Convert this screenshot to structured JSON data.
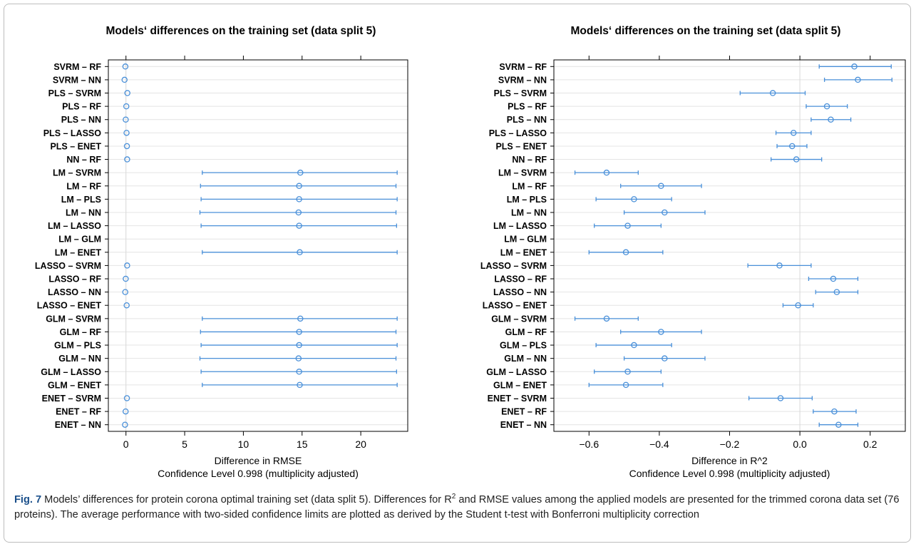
{
  "chart_data": [
    {
      "type": "scatter",
      "title": "Models‘ differences on the training set (data split 5)",
      "xlabel": "Difference in RMSE",
      "xlabel2": "Confidence Level 0.998  (multiplicity adjusted)",
      "xlim": [
        -1.5,
        24
      ],
      "xticks": [
        "0",
        "5",
        "10",
        "15",
        "20"
      ],
      "xtick_values": [
        0,
        5,
        10,
        15,
        20
      ],
      "reference_line": 0,
      "grid": true,
      "rows": [
        {
          "label": "SVRM – RF",
          "estimate": -0.05,
          "lower": -0.1,
          "upper": 0.02
        },
        {
          "label": "SVRM – NN",
          "estimate": -0.12,
          "lower": -0.17,
          "upper": -0.07
        },
        {
          "label": "PLS – SVRM",
          "estimate": 0.12,
          "lower": 0.07,
          "upper": 0.17
        },
        {
          "label": "PLS – RF",
          "estimate": 0.03,
          "lower": -0.02,
          "upper": 0.08
        },
        {
          "label": "PLS – NN",
          "estimate": -0.02,
          "lower": -0.07,
          "upper": 0.03
        },
        {
          "label": "PLS – LASSO",
          "estimate": 0.05,
          "lower": 0.0,
          "upper": 0.1
        },
        {
          "label": "PLS – ENET",
          "estimate": 0.08,
          "lower": 0.03,
          "upper": 0.13
        },
        {
          "label": "NN – RF",
          "estimate": 0.1,
          "lower": 0.05,
          "upper": 0.15
        },
        {
          "label": "LM – SVRM",
          "estimate": 14.85,
          "lower": 6.5,
          "upper": 23.1
        },
        {
          "label": "LM – RF",
          "estimate": 14.75,
          "lower": 6.35,
          "upper": 23.0
        },
        {
          "label": "LM – PLS",
          "estimate": 14.75,
          "lower": 6.4,
          "upper": 23.1
        },
        {
          "label": "LM – NN",
          "estimate": 14.7,
          "lower": 6.3,
          "upper": 23.0
        },
        {
          "label": "LM – LASSO",
          "estimate": 14.75,
          "lower": 6.4,
          "upper": 23.05
        },
        {
          "label": "LM – GLM",
          "estimate": null,
          "lower": null,
          "upper": null
        },
        {
          "label": "LM – ENET",
          "estimate": 14.8,
          "lower": 6.5,
          "upper": 23.1
        },
        {
          "label": "LASSO – SVRM",
          "estimate": 0.1,
          "lower": 0.05,
          "upper": 0.15
        },
        {
          "label": "LASSO – RF",
          "estimate": -0.02,
          "lower": -0.07,
          "upper": 0.03
        },
        {
          "label": "LASSO – NN",
          "estimate": -0.06,
          "lower": -0.11,
          "upper": -0.01
        },
        {
          "label": "LASSO – ENET",
          "estimate": 0.06,
          "lower": 0.01,
          "upper": 0.11
        },
        {
          "label": "GLM – SVRM",
          "estimate": 14.85,
          "lower": 6.5,
          "upper": 23.1
        },
        {
          "label": "GLM – RF",
          "estimate": 14.75,
          "lower": 6.35,
          "upper": 23.0
        },
        {
          "label": "GLM – PLS",
          "estimate": 14.75,
          "lower": 6.4,
          "upper": 23.1
        },
        {
          "label": "GLM – NN",
          "estimate": 14.7,
          "lower": 6.3,
          "upper": 23.0
        },
        {
          "label": "GLM – LASSO",
          "estimate": 14.75,
          "lower": 6.4,
          "upper": 23.05
        },
        {
          "label": "GLM – ENET",
          "estimate": 14.8,
          "lower": 6.5,
          "upper": 23.1
        },
        {
          "label": "ENET – SVRM",
          "estimate": 0.08,
          "lower": 0.03,
          "upper": 0.13
        },
        {
          "label": "ENET – RF",
          "estimate": -0.03,
          "lower": -0.08,
          "upper": 0.02
        },
        {
          "label": "ENET – NN",
          "estimate": -0.08,
          "lower": -0.13,
          "upper": -0.03
        }
      ]
    },
    {
      "type": "scatter",
      "title": "Models‘ differences on the training set (data split 5)",
      "xlabel": "Difference in R^2",
      "xlabel2": "Confidence Level 0.998  (multiplicity adjusted)",
      "xlim": [
        -0.7,
        0.3
      ],
      "xticks": [
        "−0.6",
        "−0.4",
        "−0.2",
        "0.0",
        "0.2"
      ],
      "xtick_values": [
        -0.6,
        -0.4,
        -0.2,
        0.0,
        0.2
      ],
      "reference_line": 0,
      "grid": true,
      "rows": [
        {
          "label": "SVRM – RF",
          "estimate": 0.155,
          "lower": 0.055,
          "upper": 0.26
        },
        {
          "label": "SVRM – NN",
          "estimate": 0.165,
          "lower": 0.07,
          "upper": 0.262
        },
        {
          "label": "PLS – SVRM",
          "estimate": -0.077,
          "lower": -0.17,
          "upper": 0.015
        },
        {
          "label": "PLS – RF",
          "estimate": 0.077,
          "lower": 0.018,
          "upper": 0.135
        },
        {
          "label": "PLS – NN",
          "estimate": 0.088,
          "lower": 0.032,
          "upper": 0.145
        },
        {
          "label": "PLS – LASSO",
          "estimate": -0.018,
          "lower": -0.068,
          "upper": 0.032
        },
        {
          "label": "PLS – ENET",
          "estimate": -0.022,
          "lower": -0.065,
          "upper": 0.02
        },
        {
          "label": "NN – RF",
          "estimate": -0.01,
          "lower": -0.082,
          "upper": 0.062
        },
        {
          "label": "LM – SVRM",
          "estimate": -0.55,
          "lower": -0.64,
          "upper": -0.46
        },
        {
          "label": "LM – RF",
          "estimate": -0.395,
          "lower": -0.51,
          "upper": -0.28
        },
        {
          "label": "LM – PLS",
          "estimate": -0.472,
          "lower": -0.58,
          "upper": -0.365
        },
        {
          "label": "LM – NN",
          "estimate": -0.385,
          "lower": -0.5,
          "upper": -0.27
        },
        {
          "label": "LM – LASSO",
          "estimate": -0.49,
          "lower": -0.585,
          "upper": -0.395
        },
        {
          "label": "LM – GLM",
          "estimate": null,
          "lower": null,
          "upper": null
        },
        {
          "label": "LM – ENET",
          "estimate": -0.495,
          "lower": -0.6,
          "upper": -0.39
        },
        {
          "label": "LASSO – SVRM",
          "estimate": -0.058,
          "lower": -0.148,
          "upper": 0.032
        },
        {
          "label": "LASSO – RF",
          "estimate": 0.095,
          "lower": 0.025,
          "upper": 0.165
        },
        {
          "label": "LASSO – NN",
          "estimate": 0.105,
          "lower": 0.045,
          "upper": 0.165
        },
        {
          "label": "LASSO – ENET",
          "estimate": -0.005,
          "lower": -0.048,
          "upper": 0.038
        },
        {
          "label": "GLM – SVRM",
          "estimate": -0.55,
          "lower": -0.64,
          "upper": -0.46
        },
        {
          "label": "GLM – RF",
          "estimate": -0.395,
          "lower": -0.51,
          "upper": -0.28
        },
        {
          "label": "GLM – PLS",
          "estimate": -0.472,
          "lower": -0.58,
          "upper": -0.365
        },
        {
          "label": "GLM – NN",
          "estimate": -0.385,
          "lower": -0.5,
          "upper": -0.27
        },
        {
          "label": "GLM – LASSO",
          "estimate": -0.49,
          "lower": -0.585,
          "upper": -0.395
        },
        {
          "label": "GLM – ENET",
          "estimate": -0.495,
          "lower": -0.6,
          "upper": -0.39
        },
        {
          "label": "ENET – SVRM",
          "estimate": -0.055,
          "lower": -0.145,
          "upper": 0.035
        },
        {
          "label": "ENET – RF",
          "estimate": 0.098,
          "lower": 0.038,
          "upper": 0.16
        },
        {
          "label": "ENET – NN",
          "estimate": 0.11,
          "lower": 0.055,
          "upper": 0.165
        }
      ]
    }
  ],
  "colors": {
    "interval": "#4a90d9",
    "point": "#4a90d9",
    "grid": "#e4e4e4",
    "axis": "#000000"
  },
  "caption": {
    "fig_label": "Fig. 7",
    "text_before_sup": "  Models’ differences for protein corona optimal training set (data split 5). Differences for R",
    "sup": "2",
    "text_after_sup": " and RMSE values among the applied models are presented for the trimmed corona data set (76 proteins). The average performance with two-sided confidence limits are plotted as derived by the Student t-test with Bonferroni multiplicity correction"
  }
}
